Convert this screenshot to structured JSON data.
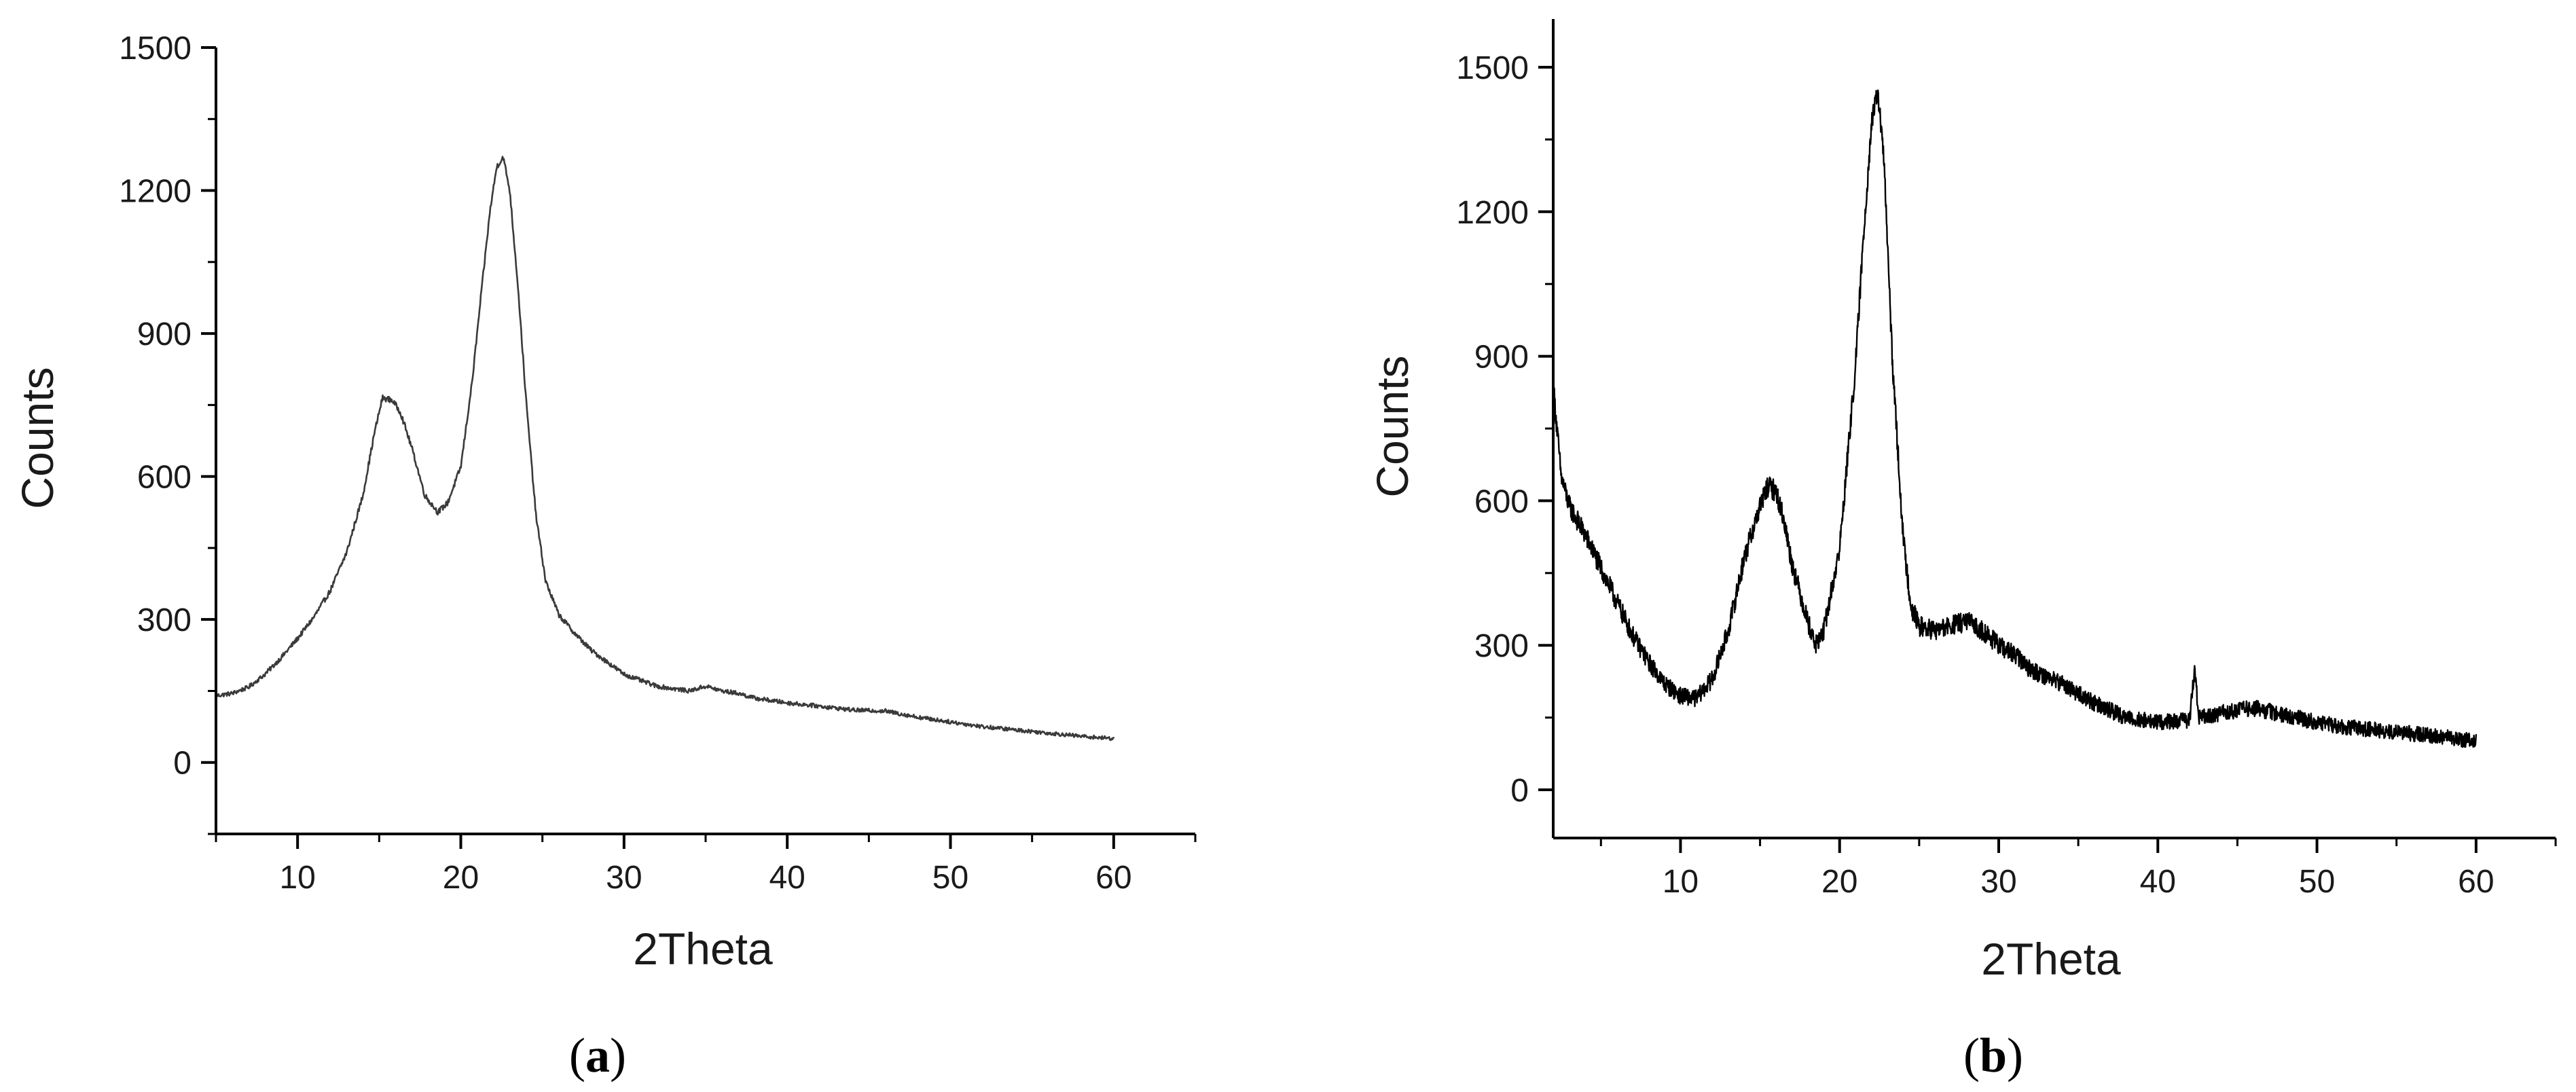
{
  "chart_data": [
    {
      "type": "line",
      "panel_label": "a",
      "title": "",
      "xlabel": "2Theta",
      "ylabel": "Counts",
      "xlim": [
        5,
        65
      ],
      "ylim": [
        -150,
        1500
      ],
      "xticks": [
        10,
        20,
        30,
        40,
        50,
        60
      ],
      "yticks": [
        0,
        300,
        600,
        900,
        1200,
        1500
      ],
      "grid": false,
      "legend": "none",
      "line_color": "#3a3a3a",
      "noise_level": 6,
      "series": [
        {
          "x": [
            5,
            6,
            7,
            8,
            9,
            10,
            11,
            12,
            13,
            14,
            14.7,
            15.2,
            15.8,
            16.3,
            17,
            17.8,
            18.6,
            19.2,
            20,
            20.7,
            21.3,
            21.8,
            22.2,
            22.6,
            23,
            23.5,
            24,
            24.6,
            25.2,
            26,
            27,
            28,
            29,
            30,
            32,
            34,
            35,
            36,
            37,
            38,
            40,
            42,
            44,
            46,
            48,
            50,
            52,
            55,
            58,
            60
          ],
          "y": [
            140,
            145,
            158,
            185,
            220,
            260,
            305,
            360,
            440,
            560,
            690,
            765,
            760,
            735,
            660,
            560,
            525,
            545,
            620,
            800,
            1000,
            1160,
            1250,
            1270,
            1200,
            1000,
            760,
            520,
            380,
            310,
            270,
            235,
            210,
            185,
            160,
            150,
            160,
            150,
            145,
            135,
            125,
            118,
            110,
            108,
            95,
            85,
            75,
            65,
            55,
            50
          ]
        }
      ]
    },
    {
      "type": "line",
      "panel_label": "b",
      "title": "",
      "xlabel": "2Theta",
      "ylabel": "Counts",
      "xlim": [
        2,
        65
      ],
      "ylim": [
        -100,
        1600
      ],
      "xticks": [
        10,
        20,
        30,
        40,
        50,
        60
      ],
      "yticks": [
        0,
        300,
        600,
        900,
        1200,
        1500
      ],
      "grid": false,
      "legend": "none",
      "line_color": "#000000",
      "noise_level": 22,
      "series": [
        {
          "x": [
            2,
            2.5,
            3,
            4,
            5,
            6,
            7,
            8,
            9,
            10,
            11,
            12,
            13,
            14,
            15,
            15.5,
            16,
            16.5,
            17,
            18,
            18.5,
            19,
            20,
            21,
            21.5,
            22,
            22.4,
            22.8,
            23.3,
            24,
            24.5,
            25,
            26,
            27,
            28,
            29,
            30,
            31,
            32,
            34,
            36,
            38,
            40,
            42,
            42.3,
            42.6,
            44,
            46,
            48,
            50,
            52,
            55,
            58,
            60
          ],
          "y": [
            840,
            650,
            590,
            530,
            460,
            390,
            320,
            265,
            220,
            195,
            190,
            230,
            330,
            480,
            590,
            630,
            620,
            560,
            470,
            350,
            300,
            330,
            500,
            880,
            1150,
            1380,
            1450,
            1300,
            900,
            520,
            380,
            340,
            330,
            340,
            350,
            330,
            300,
            280,
            250,
            220,
            180,
            150,
            140,
            145,
            250,
            150,
            160,
            170,
            155,
            140,
            130,
            120,
            110,
            100
          ]
        }
      ]
    }
  ]
}
